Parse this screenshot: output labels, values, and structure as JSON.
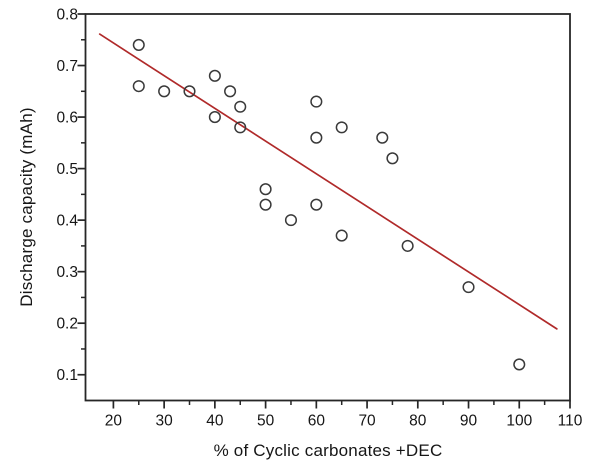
{
  "colors": {
    "background": "#ffffff",
    "frame": "#262626",
    "tick": "#262626",
    "text": "#161616",
    "marker_outline": "#3a3a3a",
    "trend_line": "#b02a2a"
  },
  "chart_data": {
    "type": "scatter",
    "title": "",
    "xlabel": "% of Cyclic carbonates +DEC",
    "ylabel": "Discharge capacity (mAh)",
    "xlim": [
      14.5,
      110
    ],
    "ylim": [
      0.05,
      0.8
    ],
    "grid": false,
    "legend": false,
    "x_ticks": {
      "values": [
        20,
        30,
        40,
        50,
        60,
        70,
        80,
        90,
        100,
        110
      ],
      "labels": [
        "20",
        "30",
        "40",
        "50",
        "60",
        "70",
        "80",
        "90",
        "100",
        "110"
      ],
      "minor": [
        25,
        35,
        45,
        55,
        65,
        75,
        85,
        95,
        105
      ]
    },
    "y_ticks": {
      "values": [
        0.1,
        0.2,
        0.3,
        0.4,
        0.5,
        0.6,
        0.7,
        0.8
      ],
      "labels": [
        "0.1",
        "0.2",
        "0.3",
        "0.4",
        "0.5",
        "0.6",
        "0.7",
        "0.8"
      ],
      "minor": [
        0.15,
        0.25,
        0.35,
        0.45,
        0.55,
        0.65,
        0.75
      ]
    },
    "series": [
      {
        "name": "discharge-capacity-points",
        "marker": "open-circle",
        "points": [
          [
            25,
            0.74
          ],
          [
            25,
            0.66
          ],
          [
            30,
            0.65
          ],
          [
            35,
            0.65
          ],
          [
            40,
            0.68
          ],
          [
            43,
            0.65
          ],
          [
            45,
            0.62
          ],
          [
            40,
            0.6
          ],
          [
            45,
            0.58
          ],
          [
            50,
            0.46
          ],
          [
            50,
            0.43
          ],
          [
            55,
            0.4
          ],
          [
            60,
            0.43
          ],
          [
            60,
            0.63
          ],
          [
            60,
            0.56
          ],
          [
            65,
            0.58
          ],
          [
            65,
            0.37
          ],
          [
            73,
            0.56
          ],
          [
            75,
            0.52
          ],
          [
            78,
            0.35
          ],
          [
            90,
            0.27
          ],
          [
            100,
            0.12
          ]
        ]
      }
    ],
    "trend_line": {
      "x1": 17.3,
      "y1": 0.761,
      "x2": 107.4,
      "y2": 0.189
    }
  }
}
